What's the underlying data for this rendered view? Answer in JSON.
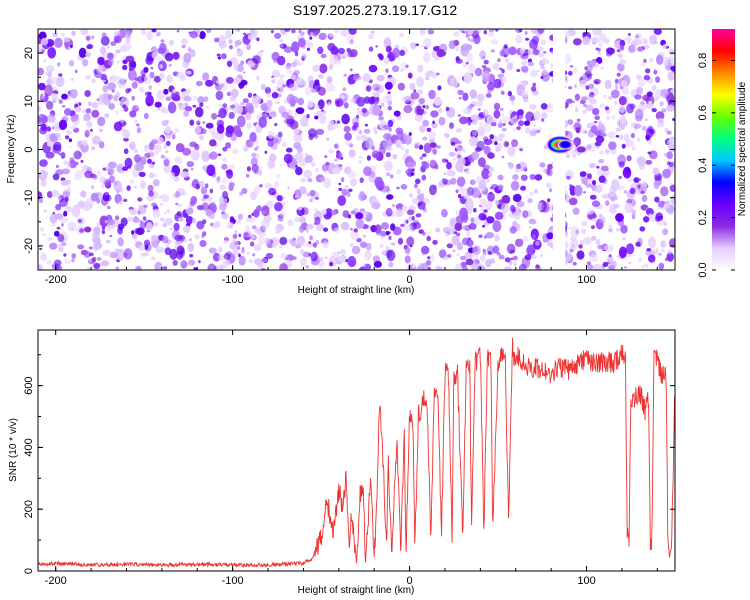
{
  "title": "S197.2025.273.19.17.G12",
  "chart_data": [
    {
      "type": "heatmap",
      "xlabel": "Height of straight line (km)",
      "ylabel": "Frequency (Hz)",
      "xlim": [
        -210,
        150
      ],
      "ylim": [
        -25,
        25
      ],
      "xticks": [
        -200,
        -100,
        0,
        100
      ],
      "yticks": [
        -20,
        -10,
        0,
        10,
        20
      ],
      "colorbar": {
        "label": "Normalized spectral amplitude",
        "range": [
          0.0,
          0.92
        ],
        "ticks": [
          "0.0",
          "0.2",
          "0.4",
          "0.6",
          "0.8"
        ],
        "tick_values": [
          0.0,
          0.2,
          0.4,
          0.6,
          0.8
        ],
        "colors": [
          "#ffffff",
          "#e6ccff",
          "#8a2be2",
          "#6a00ff",
          "#0000ff",
          "#00c8ff",
          "#00ff80",
          "#66ff00",
          "#ffff00",
          "#ff8800",
          "#ff0000",
          "#ff00a0"
        ]
      },
      "noise_level": "0.0–0.15 (purple speckle) across all heights",
      "gap_x_range": [
        81,
        88
      ],
      "signal_peaks": [
        {
          "x": 85,
          "y": 1,
          "amplitude": 0.92
        },
        {
          "x": 88,
          "y": 1,
          "amplitude": 0.35
        },
        {
          "x": 97,
          "y": 0,
          "amplitude": 0.25
        }
      ]
    },
    {
      "type": "line",
      "xlabel": "Height of straight line (km)",
      "ylabel": "SNR (10 * v/v)",
      "xlim": [
        -210,
        150
      ],
      "ylim": [
        0,
        780
      ],
      "xticks": [
        -200,
        -100,
        0,
        100
      ],
      "yticks": [
        0,
        200,
        400,
        600
      ],
      "color": "#ee3333",
      "series": [
        {
          "name": "SNR",
          "x": [
            -210,
            -200,
            -180,
            -160,
            -140,
            -120,
            -100,
            -80,
            -60,
            -55,
            -50,
            -47,
            -45,
            -43,
            -40,
            -38,
            -36,
            -34,
            -33,
            -30,
            -28,
            -26,
            -25,
            -22,
            -20,
            -18,
            -17,
            -15,
            -13,
            -12,
            -10,
            -8,
            -7,
            -5,
            -3,
            -2,
            0,
            2,
            3,
            5,
            8,
            10,
            12,
            14,
            16,
            18,
            20,
            22,
            24,
            25,
            27,
            30,
            32,
            34,
            35,
            37,
            40,
            42,
            44,
            46,
            47,
            50,
            52,
            54,
            56,
            58,
            59,
            60,
            62,
            64,
            66,
            68,
            70,
            75,
            80,
            85,
            90,
            95,
            100,
            105,
            110,
            115,
            120,
            122,
            123,
            124,
            125,
            128,
            130,
            133,
            135,
            136,
            137,
            138,
            140,
            142,
            145,
            146,
            147,
            148,
            150
          ],
          "y": [
            20,
            25,
            20,
            22,
            20,
            21,
            20,
            20,
            25,
            40,
            110,
            240,
            180,
            120,
            270,
            200,
            300,
            60,
            190,
            30,
            250,
            240,
            20,
            300,
            40,
            300,
            550,
            350,
            80,
            350,
            50,
            350,
            400,
            50,
            450,
            60,
            520,
            480,
            70,
            500,
            560,
            540,
            75,
            600,
            580,
            100,
            650,
            640,
            110,
            620,
            650,
            120,
            660,
            670,
            115,
            680,
            690,
            125,
            700,
            690,
            130,
            680,
            690,
            700,
            140,
            730,
            690,
            700,
            690,
            680,
            680,
            640,
            660,
            650,
            640,
            660,
            650,
            670,
            690,
            670,
            680,
            670,
            700,
            690,
            120,
            100,
            540,
            560,
            580,
            520,
            560,
            100,
            90,
            700,
            690,
            640,
            640,
            90,
            70,
            80,
            600
          ]
        }
      ]
    }
  ]
}
